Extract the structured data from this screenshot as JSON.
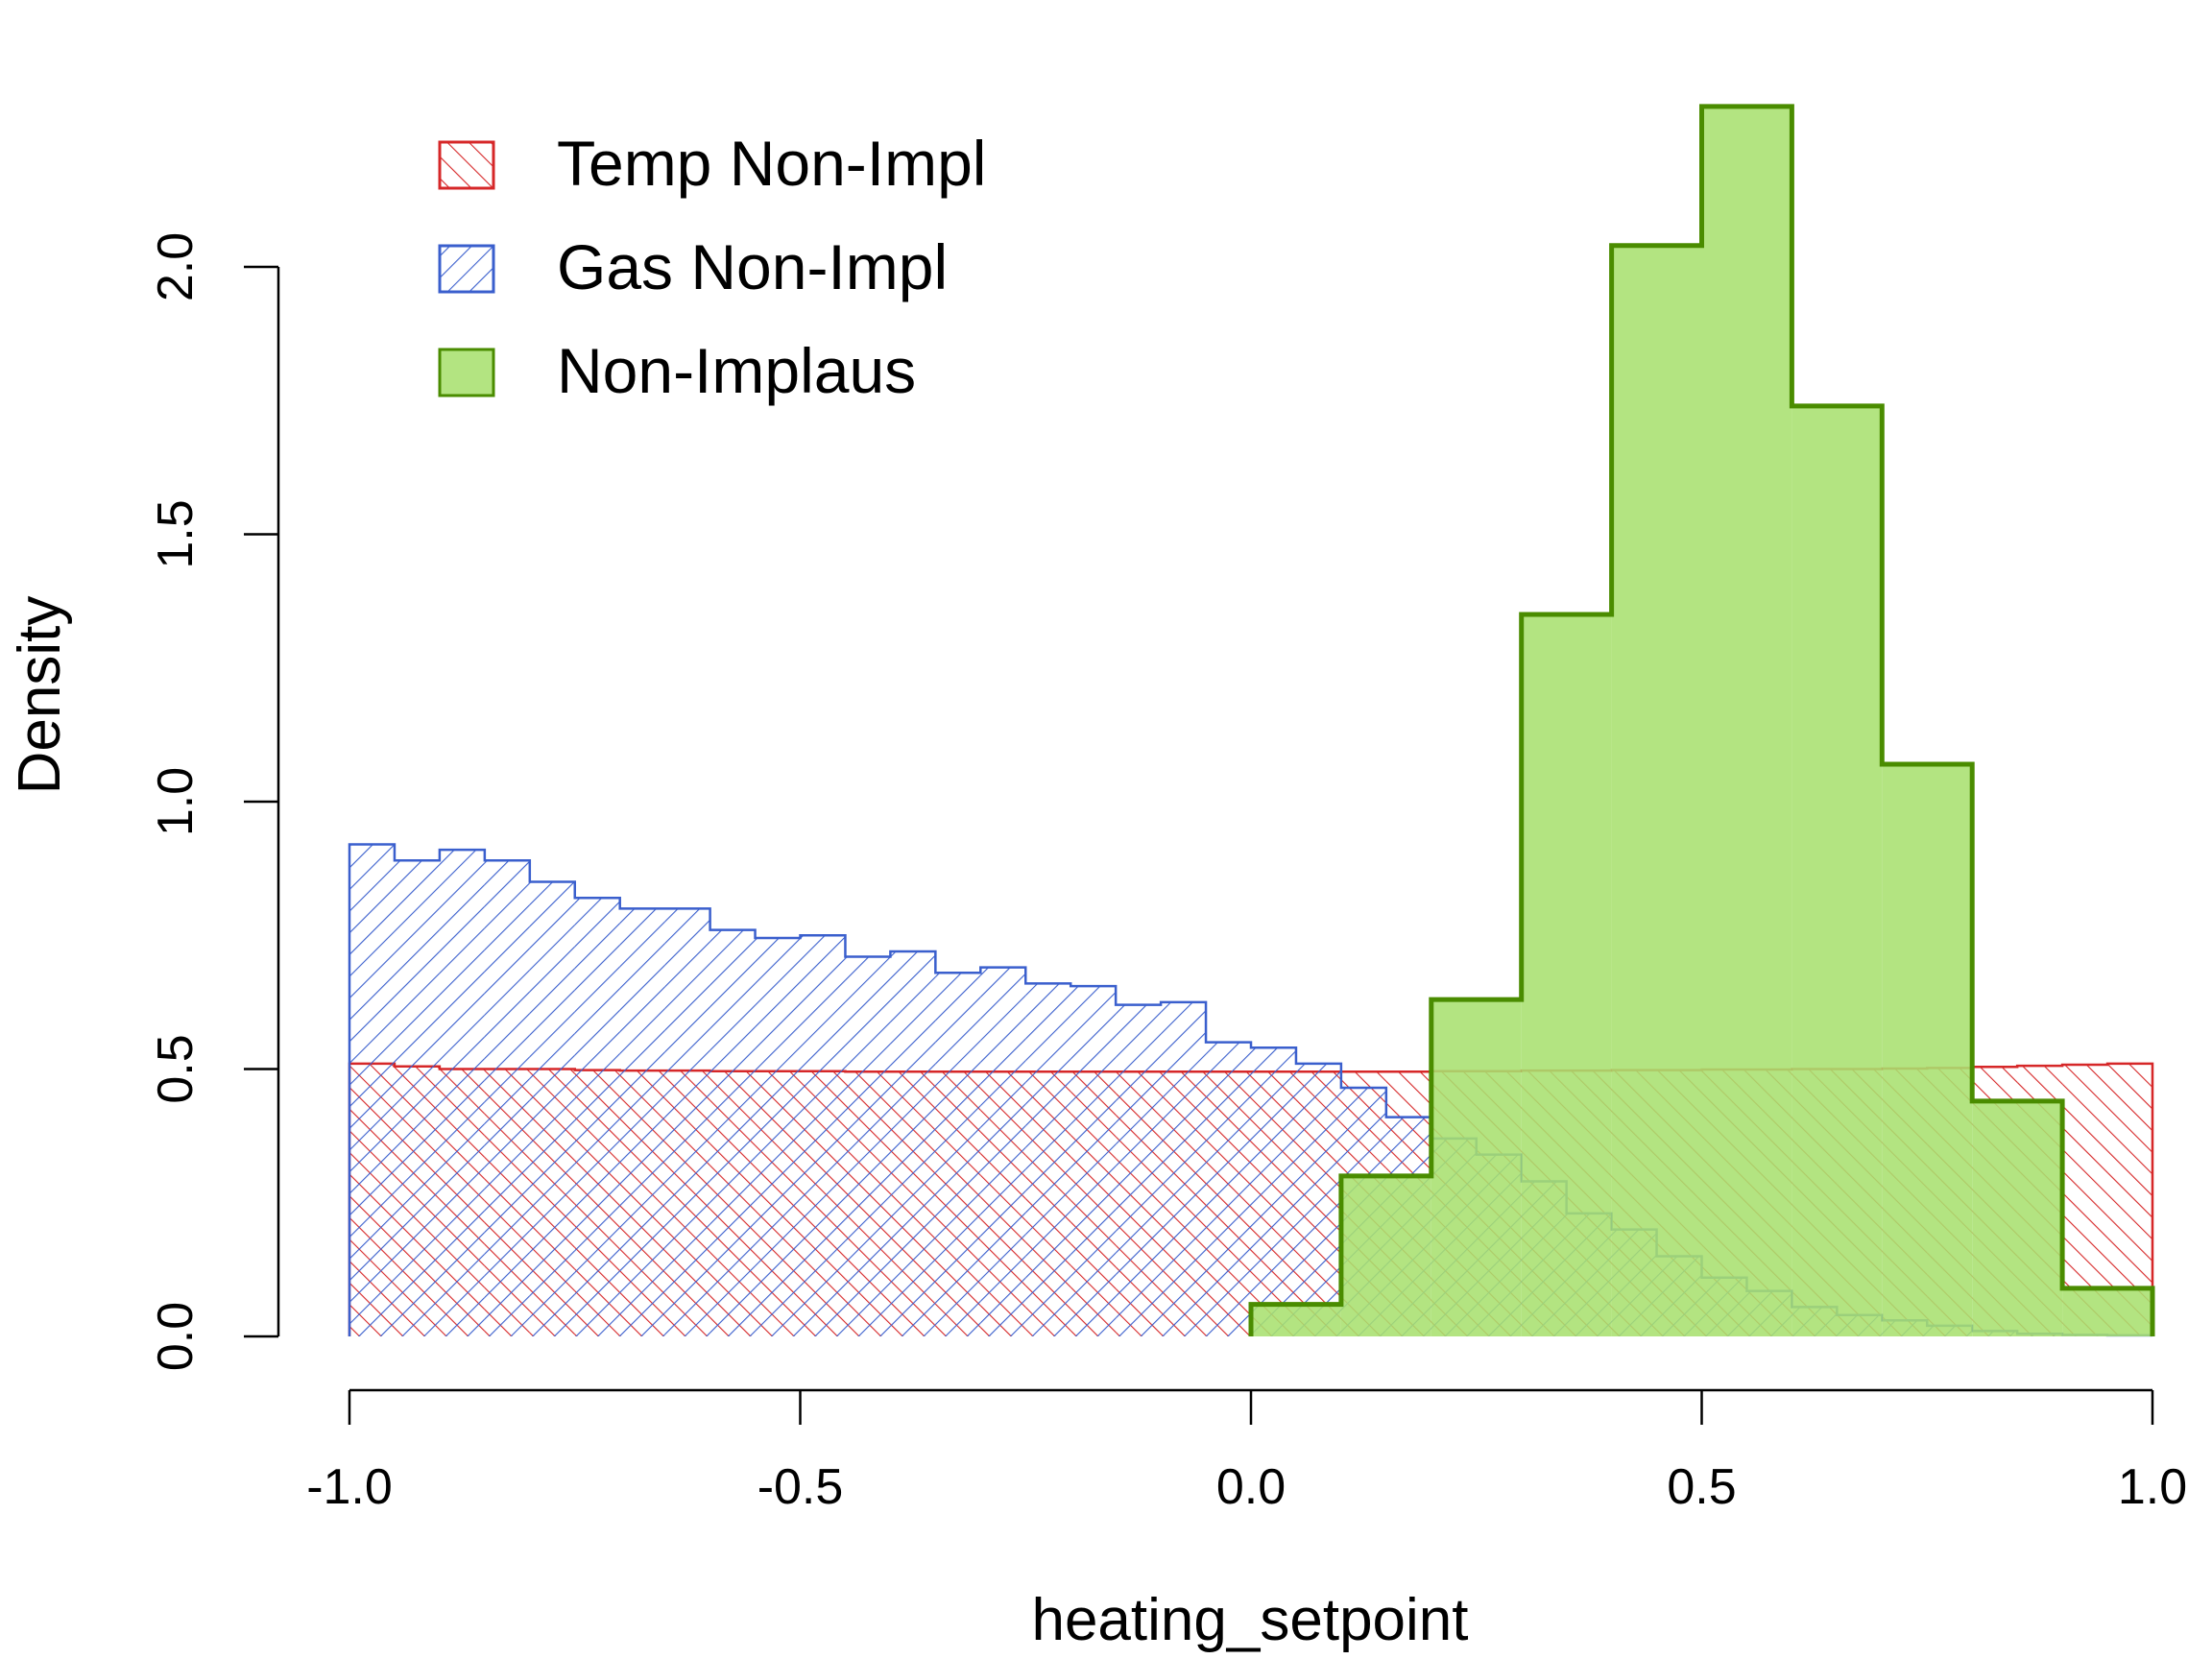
{
  "chart_data": {
    "type": "histogram",
    "xlabel": "heating_setpoint",
    "ylabel": "Density",
    "xlim": [
      -1.0,
      1.0
    ],
    "ylim": [
      0,
      2.3
    ],
    "x_ticks": [
      "-1.0",
      "-0.5",
      "0.0",
      "0.5",
      "1.0"
    ],
    "x_tick_values": [
      -1.0,
      -0.5,
      0.0,
      0.5,
      1.0
    ],
    "y_ticks": [
      "0.0",
      "0.5",
      "1.0",
      "1.5",
      "2.0"
    ],
    "y_tick_values": [
      0.0,
      0.5,
      1.0,
      1.5,
      2.0
    ],
    "legend_position": "top-left",
    "series": [
      {
        "name": "Temp Non-Impl",
        "color": "#d62728",
        "fill": "hatch-forward-diagonal",
        "bin_edges": [
          -1.0,
          1.0
        ],
        "note_bins": "40 bins of width 0.05",
        "bin_width": 0.05,
        "bin_start": -1.0,
        "values": [
          0.51,
          0.505,
          0.5,
          0.5,
          0.5,
          0.498,
          0.497,
          0.497,
          0.496,
          0.496,
          0.496,
          0.495,
          0.495,
          0.495,
          0.495,
          0.495,
          0.495,
          0.495,
          0.495,
          0.495,
          0.495,
          0.495,
          0.495,
          0.495,
          0.496,
          0.496,
          0.497,
          0.497,
          0.498,
          0.498,
          0.499,
          0.499,
          0.5,
          0.5,
          0.501,
          0.502,
          0.504,
          0.506,
          0.508,
          0.51
        ]
      },
      {
        "name": "Gas Non-Impl",
        "color": "#3a5fcd",
        "fill": "hatch-back-diagonal",
        "bin_width": 0.05,
        "bin_start": -1.0,
        "values": [
          0.92,
          0.89,
          0.91,
          0.89,
          0.85,
          0.82,
          0.8,
          0.8,
          0.76,
          0.745,
          0.75,
          0.71,
          0.72,
          0.68,
          0.69,
          0.66,
          0.655,
          0.62,
          0.625,
          0.55,
          0.54,
          0.51,
          0.465,
          0.41,
          0.37,
          0.34,
          0.29,
          0.23,
          0.2,
          0.15,
          0.11,
          0.085,
          0.055,
          0.04,
          0.03,
          0.02,
          0.01,
          0.005,
          0.003,
          0.002
        ]
      },
      {
        "name": "Non-Implaus",
        "color": "#4a8c00",
        "fill_color": "#b2e67e",
        "fill": "solid",
        "bin_width": 0.1,
        "bin_start": 0.0,
        "values": [
          0.06,
          0.3,
          0.63,
          1.35,
          2.04,
          2.3,
          1.74,
          1.07,
          0.44,
          0.09
        ]
      }
    ]
  }
}
